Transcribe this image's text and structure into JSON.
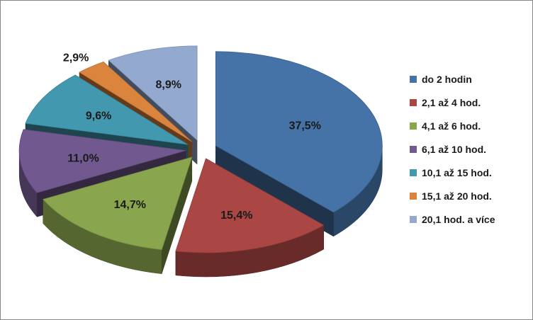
{
  "chart_data": {
    "type": "pie",
    "style": "3d-exploded",
    "title": "",
    "legend_position": "right",
    "categories": [
      "do 2 hodin",
      "2,1 až 4 hod.",
      "4,1 až 6 hod.",
      "6,1 až 10 hod.",
      "10,1 až 15 hod.",
      "15,1 až 20 hod.",
      "20,1 hod. a více"
    ],
    "values": [
      37.5,
      15.4,
      14.7,
      11.0,
      9.6,
      2.9,
      8.9
    ],
    "labels": [
      "37,5%",
      "15,4%",
      "14,7%",
      "11,0%",
      "9,6%",
      "2,9%",
      "8,9%"
    ],
    "colors": [
      "#4572A7",
      "#AA4643",
      "#89A54E",
      "#71588F",
      "#4198AF",
      "#DB843D",
      "#93A9CF"
    ]
  }
}
